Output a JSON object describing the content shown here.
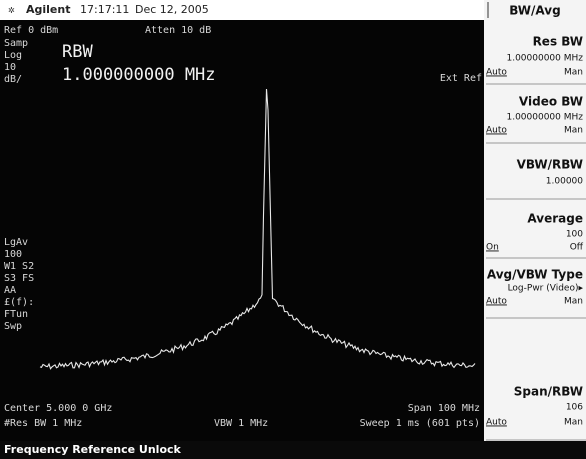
{
  "header": {
    "brand": "Agilent",
    "time": "17:17:11",
    "date": "Dec 12, 2005"
  },
  "screen": {
    "ref_level": "Ref 0 dBm",
    "attenuation": "Atten 10 dB",
    "detector": "Samp",
    "scale_type": "Log",
    "scale_value": "10",
    "scale_unit": "dB/",
    "marker_label": "RBW",
    "marker_value": "1.000000000 MHz",
    "ext_ref": "Ext Ref",
    "annotations": [
      "LgAv",
      "100",
      "W1 S2",
      "S3 FS",
      "AA",
      "£(f):",
      "FTun",
      "Swp"
    ],
    "center": "Center 5.000 0 GHz",
    "span": "Span 100 MHz",
    "res_bw": "#Res BW 1 MHz",
    "vbw": "VBW 1 MHz",
    "sweep": "Sweep 1 ms (601 pts)"
  },
  "status": "Frequency Reference Unlock",
  "softkeys": {
    "title": "BW/Avg",
    "keys": [
      {
        "label": "Res BW",
        "value": "1.00000000 MHz",
        "left": "Auto",
        "right": "Man"
      },
      {
        "label": "Video BW",
        "value": "1.00000000 MHz",
        "left": "Auto",
        "right": "Man"
      },
      {
        "label": "VBW/RBW",
        "value": "1.00000"
      },
      {
        "label": "Average",
        "value": "100",
        "left": "On",
        "right": "Off"
      },
      {
        "label": "Avg/VBW Type",
        "value": "Log-Pwr (Video)▸",
        "left": "Auto",
        "right": "Man"
      },
      {
        "label": "Span/RBW",
        "value": "106",
        "left": "Auto",
        "right": "Man"
      }
    ]
  }
}
